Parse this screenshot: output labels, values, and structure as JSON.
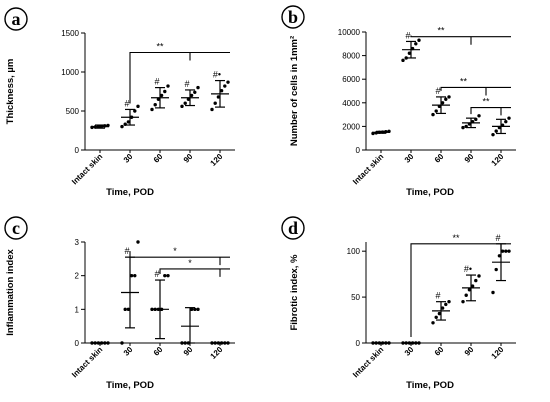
{
  "chart_data": [
    {
      "panel_label": "a",
      "type": "scatter",
      "ylabel": "Thickness, µm",
      "xlabel": "Time, POD",
      "categories": [
        "Intact skin",
        "30",
        "60",
        "90",
        "120"
      ],
      "ylim": [
        0,
        1500
      ],
      "yticks": [
        0,
        500,
        1000,
        1500
      ],
      "yticklabels": [
        "0",
        "500",
        "1000",
        "1500"
      ],
      "mean": [
        300,
        420,
        670,
        670,
        720
      ],
      "sd": [
        20,
        100,
        130,
        100,
        170
      ],
      "points": [
        [
          290,
          295,
          300,
          305,
          310,
          315
        ],
        [
          300,
          330,
          360,
          420,
          500,
          560
        ],
        [
          520,
          580,
          650,
          700,
          750,
          820
        ],
        [
          560,
          600,
          650,
          700,
          740,
          800
        ],
        [
          520,
          600,
          680,
          760,
          820,
          870
        ]
      ],
      "marks": [
        "",
        "#",
        "#",
        "#",
        "#•"
      ],
      "brackets": [
        {
          "label": "**",
          "from": 1,
          "to": [
            2,
            3,
            4
          ],
          "level": 1250
        }
      ]
    },
    {
      "panel_label": "b",
      "type": "scatter",
      "ylabel": "Number of cells in 1mm²",
      "xlabel": "Time, POD",
      "categories": [
        "Intact skin",
        "30",
        "60",
        "90",
        "120"
      ],
      "ylim": [
        0,
        10000
      ],
      "yticks": [
        0,
        2000,
        4000,
        6000,
        8000,
        10000
      ],
      "yticklabels": [
        "0",
        "2000",
        "4000",
        "6000",
        "8000",
        "10000"
      ],
      "mean": [
        1500,
        8500,
        3800,
        2300,
        2000
      ],
      "sd": [
        80,
        700,
        700,
        400,
        600
      ],
      "points": [
        [
          1400,
          1450,
          1500,
          1520,
          1550,
          1580
        ],
        [
          7600,
          7800,
          8200,
          8600,
          9000,
          9300
        ],
        [
          3000,
          3300,
          3700,
          4000,
          4300,
          4500
        ],
        [
          1900,
          2000,
          2200,
          2400,
          2600,
          2900
        ],
        [
          1300,
          1600,
          1900,
          2100,
          2400,
          2700
        ]
      ],
      "marks": [
        "",
        "#",
        "#",
        "",
        ""
      ],
      "brackets": [
        {
          "label": "**",
          "from": 1,
          "to": [
            2,
            3,
            4
          ],
          "level": 9600
        },
        {
          "label": "**",
          "from": 2,
          "to": [
            3,
            4
          ],
          "level": 5300
        },
        {
          "label": "**",
          "from": 3,
          "to": [
            4
          ],
          "level": 3600,
          "side": "from"
        }
      ]
    },
    {
      "panel_label": "c",
      "type": "scatter",
      "ylabel": "Inflammation index",
      "xlabel": "Time, POD",
      "categories": [
        "Intact skin",
        "30",
        "60",
        "90",
        "120"
      ],
      "ylim": [
        0,
        3
      ],
      "yticks": [
        0,
        1,
        2,
        3
      ],
      "yticklabels": [
        "0",
        "1",
        "2",
        "3"
      ],
      "mean": [
        0,
        1.5,
        1.0,
        0.5,
        0
      ],
      "sd": [
        0,
        1.05,
        0.87,
        0.55,
        0
      ],
      "points": [
        [
          0,
          0,
          0,
          0,
          0,
          0
        ],
        [
          0,
          1,
          1,
          2,
          2,
          3
        ],
        [
          1,
          1,
          1,
          1,
          2,
          2
        ],
        [
          0,
          0,
          0,
          1,
          1,
          1
        ],
        [
          0,
          0,
          0,
          0,
          0,
          0
        ]
      ],
      "marks": [
        "",
        "#",
        "#",
        "",
        ""
      ],
      "brackets": [
        {
          "label": "*",
          "from": 1,
          "to": [
            4
          ],
          "level": 2.55
        },
        {
          "label": "*",
          "from": 2,
          "to": [
            4
          ],
          "level": 2.2
        }
      ]
    },
    {
      "panel_label": "d",
      "type": "scatter",
      "ylabel": "Fibrotic index, %",
      "xlabel": "Time, POD",
      "categories": [
        "Intact skin",
        "30",
        "60",
        "90",
        "120"
      ],
      "ylim": [
        0,
        110
      ],
      "yticks": [
        0,
        50,
        100
      ],
      "yticklabels": [
        "0",
        "50",
        "100"
      ],
      "mean": [
        0,
        0,
        35,
        60,
        88
      ],
      "sd": [
        0,
        0,
        10,
        14,
        20
      ],
      "points": [
        [
          0,
          0,
          0,
          0,
          0,
          0
        ],
        [
          0,
          0,
          0,
          0,
          0,
          0
        ],
        [
          22,
          28,
          32,
          38,
          42,
          45
        ],
        [
          45,
          52,
          58,
          62,
          68,
          73
        ],
        [
          55,
          80,
          95,
          100,
          100,
          100
        ]
      ],
      "marks": [
        "",
        "",
        "#",
        "#•",
        "#"
      ],
      "brackets": [
        {
          "label": "**",
          "from": 1,
          "to": [
            4
          ],
          "level": 108
        }
      ]
    }
  ]
}
